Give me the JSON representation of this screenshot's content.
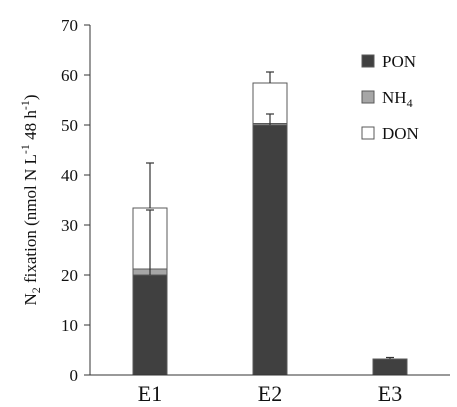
{
  "chart_data": {
    "type": "bar",
    "stacked": true,
    "categories": [
      "E1",
      "E2",
      "E3"
    ],
    "series": [
      {
        "name": "PON",
        "color": "#404040",
        "values": [
          20,
          50,
          3.2
        ]
      },
      {
        "name": "NH",
        "name_subscript": "4",
        "color": "#a6a6a6",
        "values": [
          1.2,
          0.3,
          0
        ]
      },
      {
        "name": "DON",
        "color": "#ffffff",
        "values": [
          12.2,
          8.1,
          0
        ]
      }
    ],
    "error_bars": [
      {
        "series": "PON",
        "values": [
          13,
          2.2,
          0.3
        ]
      },
      {
        "series": "DON",
        "values": [
          9,
          2.2,
          0
        ]
      }
    ],
    "ylabel": {
      "main": "N",
      "sub": "2",
      "text": " fixation (nmol N L",
      "sup1": "-1",
      "text2": " 48 h",
      "sup2": "-1",
      "end": ")"
    },
    "ylim": [
      0,
      70
    ],
    "yticks": [
      0,
      10,
      20,
      30,
      40,
      50,
      60,
      70
    ],
    "grid": false,
    "legend_position": "top-right"
  }
}
